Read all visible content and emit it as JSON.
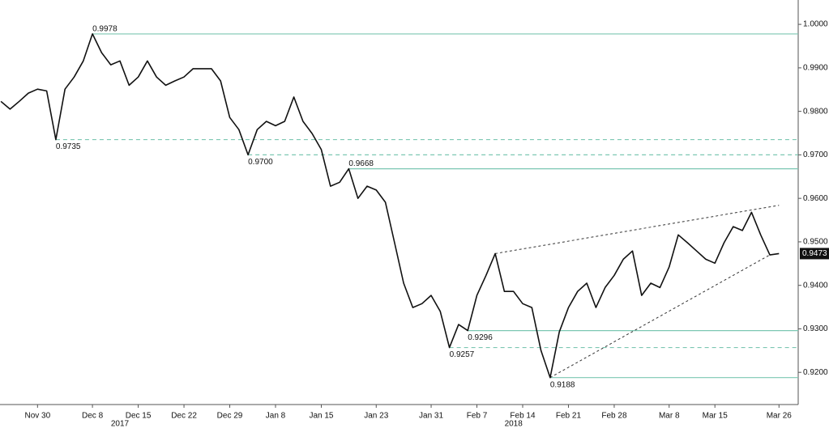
{
  "chart_data": {
    "type": "line",
    "categories": [
      null,
      null,
      null,
      null,
      "Nov 30",
      null,
      null,
      null,
      null,
      null,
      "Dec 8",
      null,
      null,
      null,
      null,
      "Dec 15",
      null,
      null,
      null,
      null,
      "Dec 22",
      null,
      null,
      null,
      null,
      "Dec 29",
      null,
      null,
      null,
      null,
      "Jan 8",
      null,
      null,
      null,
      null,
      "Jan 15",
      null,
      null,
      null,
      null,
      null,
      "Jan 23",
      null,
      null,
      null,
      null,
      null,
      "Jan 31",
      null,
      null,
      null,
      null,
      "Feb 7",
      null,
      null,
      null,
      null,
      "Feb 14",
      null,
      null,
      null,
      null,
      "Feb 21",
      null,
      null,
      null,
      null,
      "Feb 28",
      null,
      null,
      null,
      null,
      null,
      "Mar 8",
      null,
      null,
      null,
      null,
      "Mar 15",
      null,
      null,
      null,
      null,
      null,
      null,
      "Mar 26"
    ],
    "year_labels": [
      {
        "label": "2017",
        "at": 13
      },
      {
        "label": "2018",
        "at": 56
      }
    ],
    "series": [
      {
        "color": "#111111",
        "values": [
          0.9823,
          0.9805,
          0.9823,
          0.9842,
          0.9851,
          0.9847,
          0.9735,
          0.9851,
          0.9879,
          0.9916,
          0.9978,
          0.9935,
          0.9907,
          0.9916,
          0.986,
          0.9879,
          0.9916,
          0.9879,
          0.986,
          0.987,
          0.9879,
          0.9898,
          0.9898,
          0.9898,
          0.987,
          0.9786,
          0.9758,
          0.97,
          0.9758,
          0.9777,
          0.9767,
          0.9777,
          0.9833,
          0.9777,
          0.9749,
          0.9712,
          0.9628,
          0.9637,
          0.9668,
          0.96,
          0.9628,
          0.9619,
          0.9591,
          0.9498,
          0.9405,
          0.9349,
          0.9358,
          0.9377,
          0.934,
          0.9257,
          0.931,
          0.9296,
          0.9377,
          0.9423,
          0.9473,
          0.9386,
          0.9386,
          0.9358,
          0.9349,
          0.925,
          0.9188,
          0.9293,
          0.9349,
          0.9386,
          0.9405,
          0.9349,
          0.9395,
          0.9423,
          0.946,
          0.9479,
          0.9377,
          0.9405,
          0.9395,
          0.9442,
          0.9516,
          0.9498,
          0.9479,
          0.946,
          0.9451,
          0.9498,
          0.9535,
          0.9526,
          0.9568,
          0.9516,
          0.947,
          0.9473
        ]
      }
    ],
    "levels": [
      {
        "value": 0.9978,
        "label": "0.9978",
        "style": "solid",
        "label_side": "above"
      },
      {
        "value": 0.9735,
        "label": "0.9735",
        "style": "dashed",
        "label_side": "below"
      },
      {
        "value": 0.97,
        "label": "0.9700",
        "style": "dashed",
        "label_side": "below"
      },
      {
        "value": 0.9668,
        "label": "0.9668",
        "style": "solid",
        "label_side": "above"
      },
      {
        "value": 0.9296,
        "label": "0.9296",
        "style": "solid",
        "label_side": "below"
      },
      {
        "value": 0.9257,
        "label": "0.9257",
        "style": "dashed",
        "label_side": "below"
      },
      {
        "value": 0.9188,
        "label": "0.9188",
        "style": "solid",
        "label_side": "below"
      }
    ],
    "level_color": "#7cc7b2",
    "trend_lines": [
      {
        "from": [
          54,
          0.9473
        ],
        "to": [
          85,
          0.9584
        ]
      },
      {
        "from": [
          60,
          0.9188
        ],
        "to": [
          84,
          0.947
        ]
      }
    ],
    "xlim": [
      -0.1,
      87.1
    ],
    "ylim": [
      0.9126,
      1.0056
    ],
    "yticks": [
      {
        "value": 0.92,
        "label": "0.9200"
      },
      {
        "value": 0.93,
        "label": "0.9300"
      },
      {
        "value": 0.94,
        "label": "0.9400"
      },
      {
        "value": 0.95,
        "label": "0.9500"
      },
      {
        "value": 0.96,
        "label": "0.9600"
      },
      {
        "value": 0.97,
        "label": "0.9700"
      },
      {
        "value": 0.98,
        "label": "0.9800"
      },
      {
        "value": 0.99,
        "label": "0.9900"
      },
      {
        "value": 1.0,
        "label": "1.0000"
      }
    ]
  }
}
